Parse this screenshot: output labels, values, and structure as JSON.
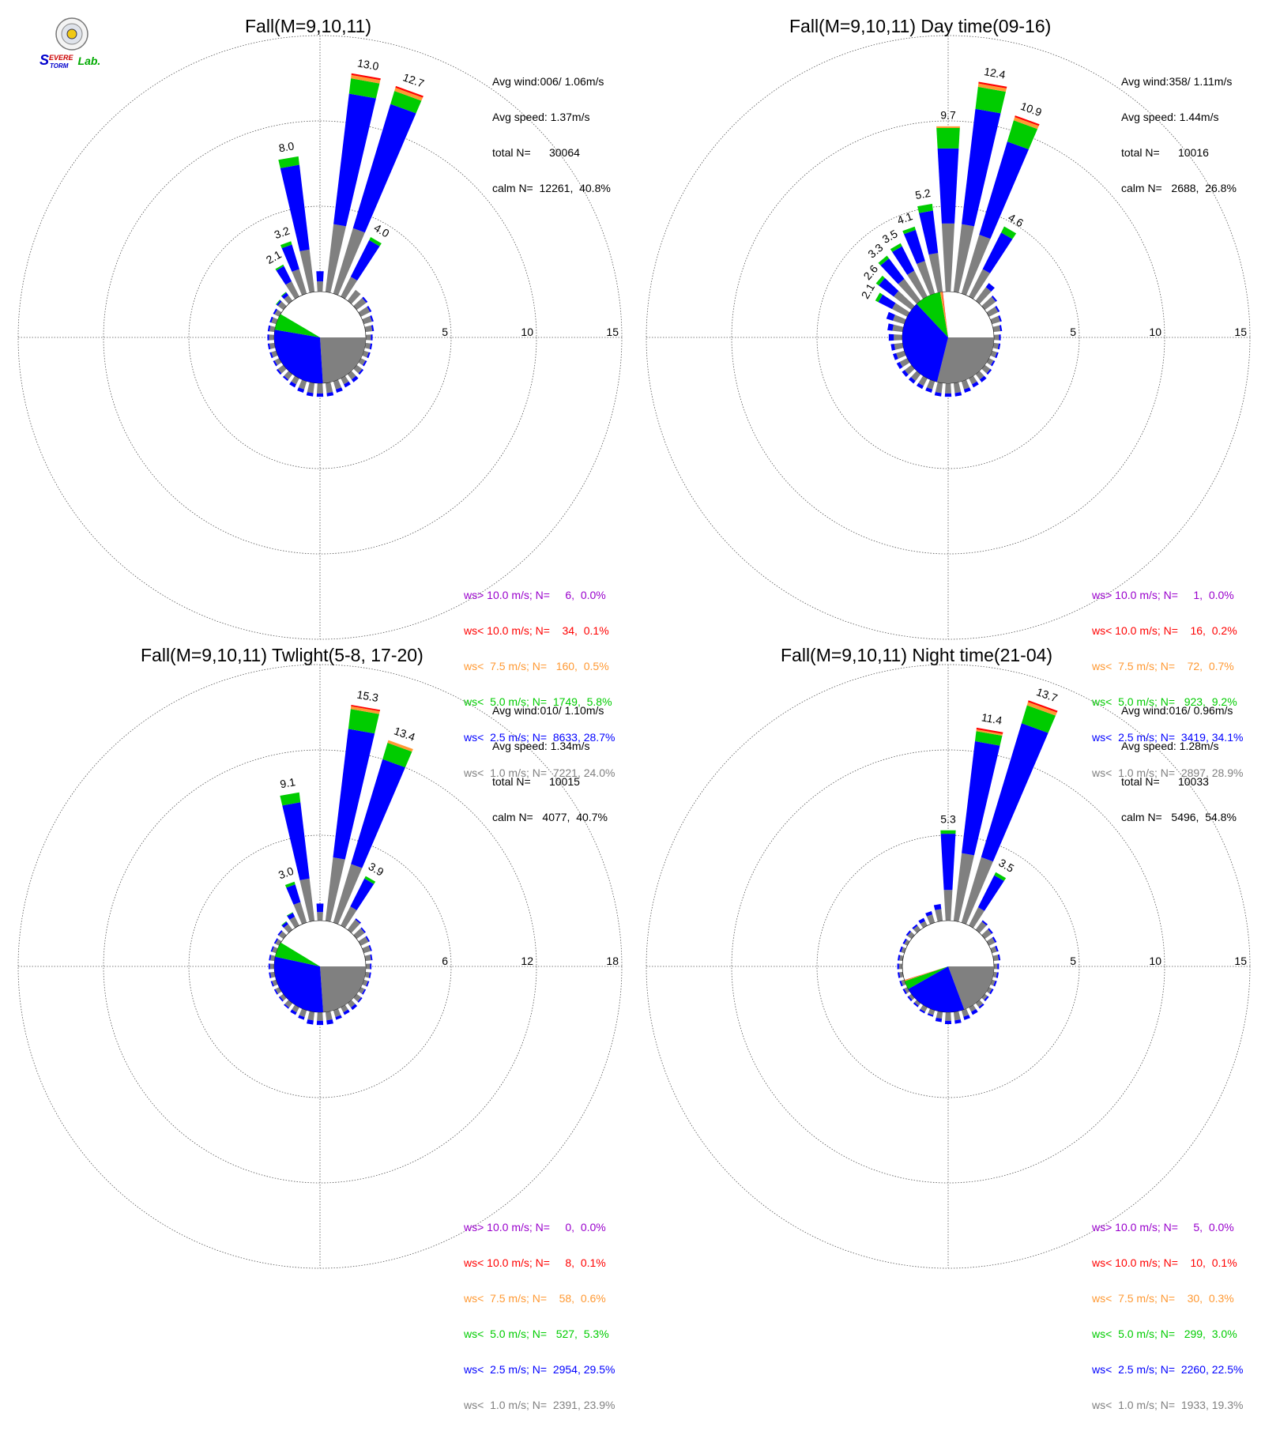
{
  "logo": {
    "text_s": "S",
    "text_evere": "EVERE",
    "text_torm": "TORM",
    "text_lab": "Lab."
  },
  "colors": {
    "gt10": "#9900cc",
    "lt10": "#ff0000",
    "lt75": "#ff9933",
    "lt5": "#00cc00",
    "lt25": "#0000ff",
    "lt1": "#808080",
    "grid": "#666666"
  },
  "chart_data": [
    {
      "type": "windrose",
      "title": "Fall(M=9,10,11)",
      "rings": [
        "5",
        "10",
        "15"
      ],
      "rmax": 15,
      "stats": [
        "Avg wind:006/ 1.06m/s",
        "Avg speed: 1.37m/s",
        "total N=      30064",
        "calm N=  12261,  40.8%"
      ],
      "legend": [
        "ws> 10.0 m/s; N=     6,  0.0%",
        "ws< 10.0 m/s; N=    34,  0.1%",
        "ws<  7.5 m/s; N=   160,  0.5%",
        "ws<  5.0 m/s; N=  1749,  5.8%",
        "ws<  2.5 m/s; N=  8633, 28.7%",
        "ws<  1.0 m/s; N=  7221, 24.0%"
      ],
      "calm_fraction": 0.408,
      "calm_shares": {
        "lt1": 24.0,
        "lt25": 28.7,
        "lt5": 5.8
      },
      "petal_labels": [
        {
          "dir": 350,
          "text": "8.0"
        },
        {
          "dir": 10,
          "text": "13.0"
        },
        {
          "dir": 20,
          "text": "12.7"
        },
        {
          "dir": 30,
          "text": "4.0"
        },
        {
          "dir": 340,
          "text": "3.2"
        },
        {
          "dir": 330,
          "text": "2.1"
        }
      ],
      "petals": [
        {
          "dir": 0,
          "lt1": 0.6,
          "lt25": 0.6,
          "lt5": 0.0
        },
        {
          "dir": 10,
          "lt1": 4.0,
          "lt25": 7.7,
          "lt5": 0.9,
          "lt75": 0.2,
          "lt10": 0.1
        },
        {
          "dir": 20,
          "lt1": 4.0,
          "lt25": 7.6,
          "lt5": 0.8,
          "lt75": 0.2,
          "lt10": 0.1
        },
        {
          "dir": 30,
          "lt1": 1.3,
          "lt25": 2.4,
          "lt5": 0.2
        },
        {
          "dir": 40,
          "lt1": 0.8,
          "lt25": 0.0
        },
        {
          "dir": 50,
          "lt1": 0.7,
          "lt25": 0.1
        },
        {
          "dir": 60,
          "lt1": 0.6,
          "lt25": 0.1
        },
        {
          "dir": 70,
          "lt1": 0.5,
          "lt25": 0.1
        },
        {
          "dir": 80,
          "lt1": 0.4,
          "lt25": 0.1
        },
        {
          "dir": 90,
          "lt1": 0.3,
          "lt25": 0.1
        },
        {
          "dir": 100,
          "lt1": 0.3,
          "lt25": 0.1
        },
        {
          "dir": 110,
          "lt1": 0.3,
          "lt25": 0.1
        },
        {
          "dir": 120,
          "lt1": 0.3,
          "lt25": 0.1
        },
        {
          "dir": 130,
          "lt1": 0.4,
          "lt25": 0.1
        },
        {
          "dir": 140,
          "lt1": 0.4,
          "lt25": 0.2
        },
        {
          "dir": 150,
          "lt1": 0.4,
          "lt25": 0.2
        },
        {
          "dir": 160,
          "lt1": 0.5,
          "lt25": 0.2
        },
        {
          "dir": 170,
          "lt1": 0.6,
          "lt25": 0.2
        },
        {
          "dir": 180,
          "lt1": 0.6,
          "lt25": 0.2
        },
        {
          "dir": 190,
          "lt1": 0.6,
          "lt25": 0.2
        },
        {
          "dir": 200,
          "lt1": 0.5,
          "lt25": 0.2
        },
        {
          "dir": 210,
          "lt1": 0.4,
          "lt25": 0.2
        },
        {
          "dir": 220,
          "lt1": 0.4,
          "lt25": 0.1
        },
        {
          "dir": 230,
          "lt1": 0.4,
          "lt25": 0.1
        },
        {
          "dir": 240,
          "lt1": 0.3,
          "lt25": 0.1
        },
        {
          "dir": 250,
          "lt1": 0.3,
          "lt25": 0.1
        },
        {
          "dir": 260,
          "lt1": 0.3,
          "lt25": 0.1
        },
        {
          "dir": 270,
          "lt1": 0.3,
          "lt25": 0.1
        },
        {
          "dir": 280,
          "lt1": 0.3,
          "lt25": 0.1
        },
        {
          "dir": 290,
          "lt1": 0.3,
          "lt25": 0.1
        },
        {
          "dir": 300,
          "lt1": 0.3,
          "lt25": 0.1
        },
        {
          "dir": 310,
          "lt1": 0.4,
          "lt25": 0.1,
          "lt5": 0.05
        },
        {
          "dir": 320,
          "lt1": 0.4,
          "lt25": 0.2,
          "lt5": 0.05
        },
        {
          "dir": 330,
          "lt1": 1.0,
          "lt25": 1.0,
          "lt5": 0.1
        },
        {
          "dir": 340,
          "lt1": 1.5,
          "lt25": 1.5,
          "lt5": 0.2
        },
        {
          "dir": 350,
          "lt1": 2.5,
          "lt25": 5.0,
          "lt5": 0.5
        }
      ]
    },
    {
      "type": "windrose",
      "title": "Fall(M=9,10,11) Day time(09-16)",
      "rings": [
        "5",
        "10",
        "15"
      ],
      "rmax": 15,
      "stats": [
        "Avg wind:358/ 1.11m/s",
        "Avg speed: 1.44m/s",
        "total N=      10016",
        "calm N=   2688,  26.8%"
      ],
      "legend": [
        "ws> 10.0 m/s; N=     1,  0.0%",
        "ws< 10.0 m/s; N=    16,  0.2%",
        "ws<  7.5 m/s; N=    72,  0.7%",
        "ws<  5.0 m/s; N=   923,  9.2%",
        "ws<  2.5 m/s; N=  3419, 34.1%",
        "ws<  1.0 m/s; N=  2897, 28.9%"
      ],
      "calm_fraction": 0.268,
      "calm_shares": {
        "lt1": 28.9,
        "lt25": 34.1,
        "lt5": 9.2,
        "lt75": 0.7,
        "lt10": 0.2
      },
      "petal_labels": [
        {
          "dir": 0,
          "text": "9.7"
        },
        {
          "dir": 10,
          "text": "12.4"
        },
        {
          "dir": 20,
          "text": "10.9"
        },
        {
          "dir": 30,
          "text": "4.6"
        },
        {
          "dir": 350,
          "text": "5.2"
        },
        {
          "dir": 340,
          "text": "4.1"
        },
        {
          "dir": 330,
          "text": "3.5"
        },
        {
          "dir": 320,
          "text": "3.3"
        },
        {
          "dir": 310,
          "text": "2.6"
        },
        {
          "dir": 300,
          "text": "2.1"
        }
      ],
      "petals": [
        {
          "dir": 0,
          "lt1": 4.0,
          "lt25": 4.4,
          "lt5": 1.2,
          "lt75": 0.1
        },
        {
          "dir": 10,
          "lt1": 4.0,
          "lt25": 6.8,
          "lt5": 1.3,
          "lt75": 0.2,
          "lt10": 0.1
        },
        {
          "dir": 20,
          "lt1": 3.6,
          "lt25": 5.7,
          "lt5": 1.3,
          "lt75": 0.2,
          "lt10": 0.1
        },
        {
          "dir": 30,
          "lt1": 1.8,
          "lt25": 2.4,
          "lt5": 0.4
        },
        {
          "dir": 40,
          "lt1": 1.0,
          "lt25": 0.3
        },
        {
          "dir": 50,
          "lt1": 0.8,
          "lt25": 0.1
        },
        {
          "dir": 60,
          "lt1": 0.6,
          "lt25": 0.1
        },
        {
          "dir": 70,
          "lt1": 0.5,
          "lt25": 0.1
        },
        {
          "dir": 80,
          "lt1": 0.4,
          "lt25": 0.1
        },
        {
          "dir": 90,
          "lt1": 0.3,
          "lt25": 0.1
        },
        {
          "dir": 100,
          "lt1": 0.3,
          "lt25": 0.1
        },
        {
          "dir": 110,
          "lt1": 0.3,
          "lt25": 0.1
        },
        {
          "dir": 120,
          "lt1": 0.3,
          "lt25": 0.1
        },
        {
          "dir": 130,
          "lt1": 0.4,
          "lt25": 0.1
        },
        {
          "dir": 140,
          "lt1": 0.4,
          "lt25": 0.2
        },
        {
          "dir": 150,
          "lt1": 0.4,
          "lt25": 0.2
        },
        {
          "dir": 160,
          "lt1": 0.5,
          "lt25": 0.2
        },
        {
          "dir": 170,
          "lt1": 0.6,
          "lt25": 0.2
        },
        {
          "dir": 180,
          "lt1": 0.6,
          "lt25": 0.2
        },
        {
          "dir": 190,
          "lt1": 0.6,
          "lt25": 0.2
        },
        {
          "dir": 200,
          "lt1": 0.5,
          "lt25": 0.2
        },
        {
          "dir": 210,
          "lt1": 0.5,
          "lt25": 0.2
        },
        {
          "dir": 220,
          "lt1": 0.5,
          "lt25": 0.2
        },
        {
          "dir": 230,
          "lt1": 0.5,
          "lt25": 0.2
        },
        {
          "dir": 240,
          "lt1": 0.5,
          "lt25": 0.2
        },
        {
          "dir": 250,
          "lt1": 0.5,
          "lt25": 0.2
        },
        {
          "dir": 260,
          "lt1": 0.5,
          "lt25": 0.2
        },
        {
          "dir": 270,
          "lt1": 0.5,
          "lt25": 0.3
        },
        {
          "dir": 280,
          "lt1": 0.6,
          "lt25": 0.3
        },
        {
          "dir": 290,
          "lt1": 0.7,
          "lt25": 0.4
        },
        {
          "dir": 300,
          "lt1": 1.0,
          "lt25": 0.9,
          "lt5": 0.2
        },
        {
          "dir": 310,
          "lt1": 1.3,
          "lt25": 1.1,
          "lt5": 0.2
        },
        {
          "dir": 320,
          "lt1": 1.6,
          "lt25": 1.5,
          "lt5": 0.2
        },
        {
          "dir": 330,
          "lt1": 1.7,
          "lt25": 1.6,
          "lt5": 0.2
        },
        {
          "dir": 340,
          "lt1": 2.0,
          "lt25": 1.9,
          "lt5": 0.2
        },
        {
          "dir": 350,
          "lt1": 2.3,
          "lt25": 2.5,
          "lt5": 0.4
        }
      ]
    },
    {
      "type": "windrose",
      "title": "Fall(M=9,10,11) Twlight(5-8, 17-20)",
      "rings": [
        "6",
        "12",
        "18"
      ],
      "rmax": 18,
      "stats": [
        "Avg wind:010/ 1.10m/s",
        "Avg speed: 1.34m/s",
        "total N=      10015",
        "calm N=   4077,  40.7%"
      ],
      "legend": [
        "ws> 10.0 m/s; N=     0,  0.0%",
        "ws< 10.0 m/s; N=     8,  0.1%",
        "ws<  7.5 m/s; N=    58,  0.6%",
        "ws<  5.0 m/s; N=   527,  5.3%",
        "ws<  2.5 m/s; N=  2954, 29.5%",
        "ws<  1.0 m/s; N=  2391, 23.9%"
      ],
      "calm_fraction": 0.407,
      "calm_shares": {
        "lt1": 23.9,
        "lt25": 29.5,
        "lt5": 5.3
      },
      "petal_labels": [
        {
          "dir": 350,
          "text": "9.1"
        },
        {
          "dir": 10,
          "text": "15.3"
        },
        {
          "dir": 20,
          "text": "13.4"
        },
        {
          "dir": 30,
          "text": "3.9"
        },
        {
          "dir": 340,
          "text": "3.0"
        }
      ],
      "petals": [
        {
          "dir": 0,
          "lt1": 0.6,
          "lt25": 0.6
        },
        {
          "dir": 10,
          "lt1": 4.5,
          "lt25": 9.1,
          "lt5": 1.4,
          "lt75": 0.2,
          "lt10": 0.1
        },
        {
          "dir": 20,
          "lt1": 4.3,
          "lt25": 7.7,
          "lt5": 1.2,
          "lt75": 0.2
        },
        {
          "dir": 30,
          "lt1": 1.5,
          "lt25": 2.2,
          "lt5": 0.2
        },
        {
          "dir": 40,
          "lt1": 0.9,
          "lt25": 0.1
        },
        {
          "dir": 50,
          "lt1": 0.7,
          "lt25": 0.1
        },
        {
          "dir": 60,
          "lt1": 0.6,
          "lt25": 0.1
        },
        {
          "dir": 70,
          "lt1": 0.5,
          "lt25": 0.1
        },
        {
          "dir": 80,
          "lt1": 0.4,
          "lt25": 0.1
        },
        {
          "dir": 90,
          "lt1": 0.3,
          "lt25": 0.1
        },
        {
          "dir": 100,
          "lt1": 0.3,
          "lt25": 0.1
        },
        {
          "dir": 110,
          "lt1": 0.3,
          "lt25": 0.1
        },
        {
          "dir": 120,
          "lt1": 0.3,
          "lt25": 0.1
        },
        {
          "dir": 130,
          "lt1": 0.4,
          "lt25": 0.1
        },
        {
          "dir": 140,
          "lt1": 0.4,
          "lt25": 0.2
        },
        {
          "dir": 150,
          "lt1": 0.4,
          "lt25": 0.2
        },
        {
          "dir": 160,
          "lt1": 0.5,
          "lt25": 0.2
        },
        {
          "dir": 170,
          "lt1": 0.6,
          "lt25": 0.3
        },
        {
          "dir": 180,
          "lt1": 0.6,
          "lt25": 0.3
        },
        {
          "dir": 190,
          "lt1": 0.6,
          "lt25": 0.3
        },
        {
          "dir": 200,
          "lt1": 0.5,
          "lt25": 0.2
        },
        {
          "dir": 210,
          "lt1": 0.4,
          "lt25": 0.2
        },
        {
          "dir": 220,
          "lt1": 0.4,
          "lt25": 0.1
        },
        {
          "dir": 230,
          "lt1": 0.3,
          "lt25": 0.1
        },
        {
          "dir": 240,
          "lt1": 0.3,
          "lt25": 0.1
        },
        {
          "dir": 250,
          "lt1": 0.3,
          "lt25": 0.1
        },
        {
          "dir": 260,
          "lt1": 0.3,
          "lt25": 0.1
        },
        {
          "dir": 270,
          "lt1": 0.3,
          "lt25": 0.1
        },
        {
          "dir": 280,
          "lt1": 0.3,
          "lt25": 0.1
        },
        {
          "dir": 290,
          "lt1": 0.3,
          "lt25": 0.1
        },
        {
          "dir": 300,
          "lt1": 0.3,
          "lt25": 0.1
        },
        {
          "dir": 310,
          "lt1": 0.4,
          "lt25": 0.1
        },
        {
          "dir": 320,
          "lt1": 0.5,
          "lt25": 0.2,
          "lt5": 0.05
        },
        {
          "dir": 330,
          "lt1": 0.7,
          "lt25": 0.3,
          "lt5": 0.05
        },
        {
          "dir": 340,
          "lt1": 1.5,
          "lt25": 1.3,
          "lt5": 0.2
        },
        {
          "dir": 350,
          "lt1": 3.0,
          "lt25": 5.4,
          "lt5": 0.7
        }
      ]
    },
    {
      "type": "windrose",
      "title": "Fall(M=9,10,11) Night time(21-04)",
      "rings": [
        "5",
        "10",
        "15"
      ],
      "rmax": 15,
      "stats": [
        "Avg wind:016/ 0.96m/s",
        "Avg speed: 1.28m/s",
        "total N=      10033",
        "calm N=   5496,  54.8%"
      ],
      "legend": [
        "ws> 10.0 m/s; N=     5,  0.0%",
        "ws< 10.0 m/s; N=    10,  0.1%",
        "ws<  7.5 m/s; N=    30,  0.3%",
        "ws<  5.0 m/s; N=   299,  3.0%",
        "ws<  2.5 m/s; N=  2260, 22.5%",
        "ws<  1.0 m/s; N=  1933, 19.3%"
      ],
      "calm_fraction": 0.548,
      "calm_shares": {
        "lt1": 19.3,
        "lt25": 22.5,
        "lt5": 3.0,
        "lt75": 0.3,
        "lt10": 0.1
      },
      "petal_labels": [
        {
          "dir": 0,
          "text": "5.3"
        },
        {
          "dir": 10,
          "text": "11.4"
        },
        {
          "dir": 20,
          "text": "13.7"
        },
        {
          "dir": 30,
          "text": "3.5"
        }
      ],
      "petals": [
        {
          "dir": 0,
          "lt1": 1.8,
          "lt25": 3.3,
          "lt5": 0.2
        },
        {
          "dir": 10,
          "lt1": 4.0,
          "lt25": 6.6,
          "lt5": 0.6,
          "lt75": 0.1,
          "lt10": 0.1
        },
        {
          "dir": 20,
          "lt1": 4.0,
          "lt25": 8.2,
          "lt5": 1.1,
          "lt75": 0.2,
          "lt10": 0.1
        },
        {
          "dir": 30,
          "lt1": 1.2,
          "lt25": 2.1,
          "lt5": 0.2
        },
        {
          "dir": 40,
          "lt1": 0.6,
          "lt25": 0.1
        },
        {
          "dir": 50,
          "lt1": 0.5,
          "lt25": 0.1
        },
        {
          "dir": 60,
          "lt1": 0.4,
          "lt25": 0.1
        },
        {
          "dir": 70,
          "lt1": 0.3,
          "lt25": 0.1
        },
        {
          "dir": 80,
          "lt1": 0.3,
          "lt25": 0.1
        },
        {
          "dir": 90,
          "lt1": 0.2,
          "lt25": 0.1
        },
        {
          "dir": 100,
          "lt1": 0.2,
          "lt25": 0.1
        },
        {
          "dir": 110,
          "lt1": 0.2,
          "lt25": 0.1
        },
        {
          "dir": 120,
          "lt1": 0.2,
          "lt25": 0.1
        },
        {
          "dir": 130,
          "lt1": 0.2,
          "lt25": 0.1
        },
        {
          "dir": 140,
          "lt1": 0.3,
          "lt25": 0.1
        },
        {
          "dir": 150,
          "lt1": 0.3,
          "lt25": 0.2
        },
        {
          "dir": 160,
          "lt1": 0.4,
          "lt25": 0.2
        },
        {
          "dir": 170,
          "lt1": 0.5,
          "lt25": 0.2
        },
        {
          "dir": 180,
          "lt1": 0.5,
          "lt25": 0.2
        },
        {
          "dir": 190,
          "lt1": 0.4,
          "lt25": 0.2
        },
        {
          "dir": 200,
          "lt1": 0.3,
          "lt25": 0.1
        },
        {
          "dir": 210,
          "lt1": 0.3,
          "lt25": 0.1
        },
        {
          "dir": 220,
          "lt1": 0.2,
          "lt25": 0.1
        },
        {
          "dir": 230,
          "lt1": 0.2,
          "lt25": 0.1
        },
        {
          "dir": 240,
          "lt1": 0.2,
          "lt25": 0.1
        },
        {
          "dir": 250,
          "lt1": 0.2,
          "lt25": 0.1
        },
        {
          "dir": 260,
          "lt1": 0.2,
          "lt25": 0.1
        },
        {
          "dir": 270,
          "lt1": 0.2,
          "lt25": 0.1
        },
        {
          "dir": 280,
          "lt1": 0.2,
          "lt25": 0.1
        },
        {
          "dir": 290,
          "lt1": 0.2,
          "lt25": 0.1
        },
        {
          "dir": 300,
          "lt1": 0.2,
          "lt25": 0.1
        },
        {
          "dir": 310,
          "lt1": 0.3,
          "lt25": 0.1
        },
        {
          "dir": 320,
          "lt1": 0.3,
          "lt25": 0.1
        },
        {
          "dir": 330,
          "lt1": 0.3,
          "lt25": 0.2
        },
        {
          "dir": 340,
          "lt1": 0.5,
          "lt25": 0.2
        },
        {
          "dir": 350,
          "lt1": 0.7,
          "lt25": 0.3
        }
      ]
    }
  ]
}
